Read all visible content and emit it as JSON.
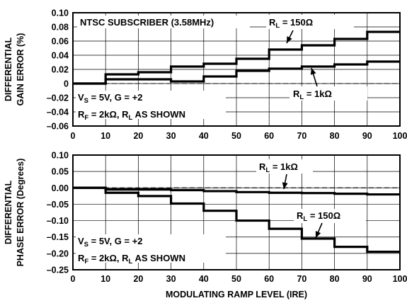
{
  "chart_data": [
    {
      "type": "line",
      "step": true,
      "ylabel_lines": [
        "DIFFERENTIAL",
        "GAIN ERROR (%)"
      ],
      "xlabel": "",
      "xlim": [
        0,
        100
      ],
      "ylim": [
        -0.06,
        0.1
      ],
      "x_ticks": [
        "0",
        "10",
        "20",
        "30",
        "40",
        "50",
        "60",
        "70",
        "80",
        "90",
        "100"
      ],
      "y_ticks": [
        "0.10",
        "0.08",
        "0.06",
        "0.04",
        "0.02",
        "0",
        "–0.02",
        "–0.04",
        "–0.06"
      ],
      "grid": true,
      "reference_line": 0,
      "annotations": {
        "title_box": "NTSC SUBSCRIBER (3.58MHz)",
        "conditions_line1": "V",
        "conditions_line1_sub": "S",
        "conditions_line1_rest": " = 5V, G = +2",
        "conditions_line2": "R",
        "conditions_line2_sub": "F",
        "conditions_line2_mid": " = 2kΩ, R",
        "conditions_line2_sub2": "L",
        "conditions_line2_rest": " AS SHOWN"
      },
      "series": [
        {
          "label_main": "R",
          "label_sub": "L",
          "label_value": " = 150Ω",
          "steps": [
            0,
            10,
            20,
            30,
            40,
            50,
            60,
            70,
            80,
            90,
            100
          ],
          "values": [
            0.0,
            0.013,
            0.016,
            0.024,
            0.028,
            0.035,
            0.048,
            0.054,
            0.063,
            0.073
          ]
        },
        {
          "label_main": "R",
          "label_sub": "L",
          "label_value": " = 1kΩ",
          "steps": [
            0,
            10,
            20,
            30,
            40,
            50,
            60,
            70,
            80,
            90,
            100
          ],
          "values": [
            0.0,
            0.006,
            0.006,
            0.003,
            0.01,
            0.018,
            0.021,
            0.024,
            0.027,
            0.031
          ]
        }
      ]
    },
    {
      "type": "line",
      "step": true,
      "ylabel_lines": [
        "DIFFERENTIAL",
        "PHASE ERROR (Degrees)"
      ],
      "xlabel": "MODULATING RAMP LEVEL (IRE)",
      "xlim": [
        0,
        100
      ],
      "ylim": [
        -0.25,
        0.1
      ],
      "x_ticks": [
        "0",
        "10",
        "20",
        "30",
        "40",
        "50",
        "60",
        "70",
        "80",
        "90",
        "100"
      ],
      "y_ticks": [
        "0.10",
        "0.05",
        "0.00",
        "–0.05",
        "–0.10",
        "–0.15",
        "–0.20",
        "–0.25"
      ],
      "grid": true,
      "reference_line": 0,
      "annotations": {
        "conditions_line1": "V",
        "conditions_line1_sub": "S",
        "conditions_line1_rest": " = 5V, G = +2",
        "conditions_line2": "R",
        "conditions_line2_sub": "F",
        "conditions_line2_mid": " = 2kΩ, R",
        "conditions_line2_sub2": "L",
        "conditions_line2_rest": " AS SHOWN"
      },
      "series": [
        {
          "label_main": "R",
          "label_sub": "L",
          "label_value": " = 1kΩ",
          "steps": [
            0,
            10,
            20,
            30,
            40,
            50,
            60,
            70,
            80,
            90,
            100
          ],
          "values": [
            0.0,
            -0.005,
            -0.005,
            -0.007,
            -0.01,
            -0.013,
            -0.015,
            -0.016,
            -0.018,
            -0.02
          ]
        },
        {
          "label_main": "R",
          "label_sub": "L",
          "label_value": " = 150Ω",
          "steps": [
            0,
            10,
            20,
            30,
            40,
            50,
            60,
            70,
            80,
            90,
            100
          ],
          "values": [
            0.0,
            -0.015,
            -0.025,
            -0.048,
            -0.07,
            -0.1,
            -0.125,
            -0.155,
            -0.18,
            -0.195
          ]
        }
      ]
    }
  ]
}
